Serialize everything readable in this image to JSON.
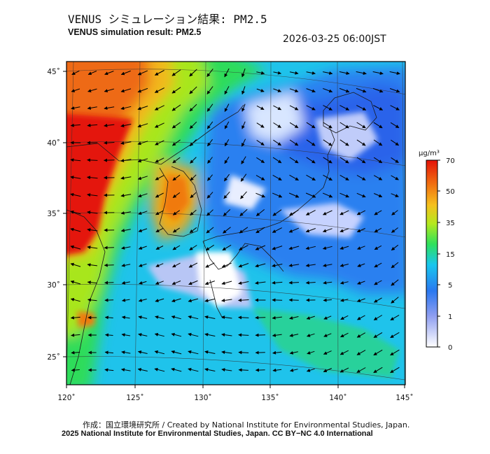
{
  "header": {
    "title_jp": "VENUS シミュレーション結果: PM2.5",
    "title_en": "VENUS simulation result: PM2.5",
    "timestamp": "2026-03-25 06:00JST"
  },
  "map": {
    "lon_ticks": [
      "120˚",
      "125˚",
      "130˚",
      "135˚",
      "140˚",
      "145˚"
    ],
    "lat_ticks": [
      "45˚",
      "40˚",
      "35˚",
      "30˚",
      "25˚"
    ],
    "field": "PM2.5 concentration",
    "palette": [
      "#ffffff",
      "#8c9cf0",
      "#2a78f0",
      "#18c6ee",
      "#2ee05c",
      "#b4e81e",
      "#f5c01e",
      "#f06a10",
      "#e41208"
    ]
  },
  "colorbar": {
    "unit": "μg/m³",
    "labels": [
      "70",
      "50",
      "35",
      "15",
      "5",
      "1",
      "0"
    ]
  },
  "footer": {
    "credit_jp": "作成：国立環境研究所 / Created by National Institute for Environmental Studies, Japan.",
    "credit_en": "2025 National Institute for Environmental Studies, Japan. CC BY−NC 4.0 International"
  }
}
